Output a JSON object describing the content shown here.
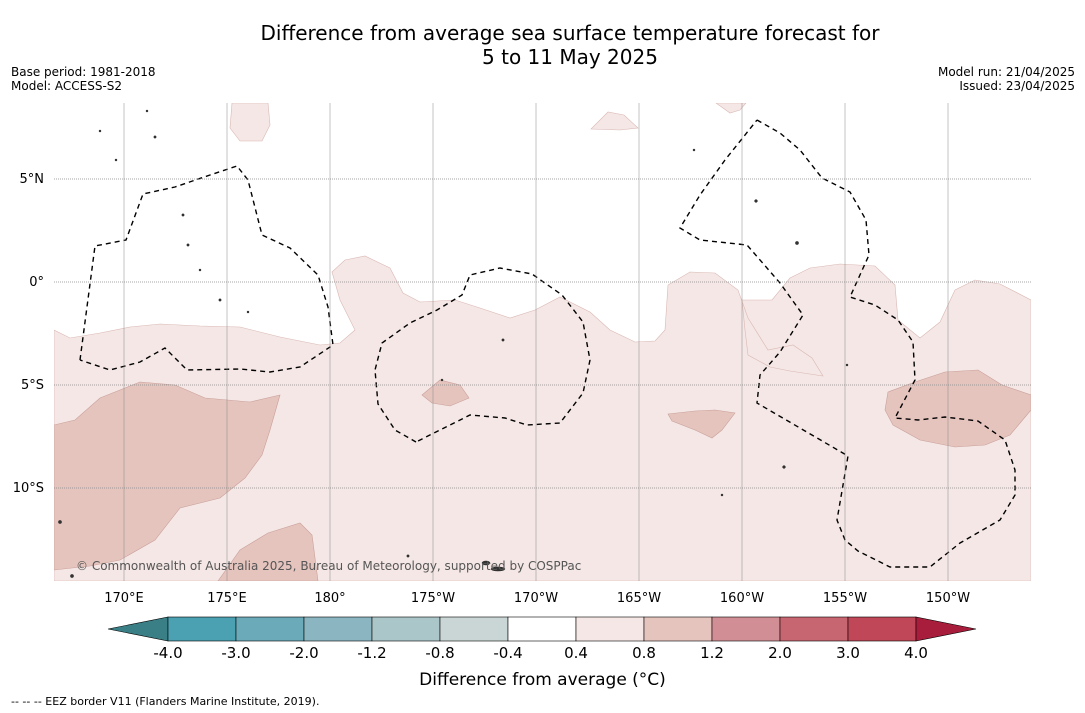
{
  "title_line1": "Difference from average sea surface temperature forecast for",
  "title_line2": "5 to 11 May 2025",
  "meta_left": {
    "base_period": "Base period: 1981-2018",
    "model": "Model: ACCESS-S2"
  },
  "meta_right": {
    "model_run": "Model run: 21/04/2025",
    "issued": "Issued: 23/04/2025"
  },
  "copyright": "© Commonwealth of Australia 2025, Bureau of Meteorology, supported by COSPPac",
  "lat_labels": [
    "5°N",
    "0°",
    "5°S",
    "10°S"
  ],
  "lon_labels": [
    "170°E",
    "175°E",
    "180°",
    "175°W",
    "170°W",
    "165°W",
    "160°W",
    "155°W",
    "150°W"
  ],
  "colorbar": {
    "title": "Difference from average (°C)",
    "tick_labels": [
      "-4.0",
      "-3.0",
      "-2.0",
      "-1.2",
      "-0.8",
      "-0.4",
      "0.4",
      "0.8",
      "1.2",
      "2.0",
      "3.0",
      "4.0"
    ],
    "colors": [
      "#3a7f86",
      "#4ba1b2",
      "#6aaab9",
      "#8bb6c1",
      "#abc6c9",
      "#cad6d6",
      "#ffffff",
      "#f4e7e5",
      "#e6c4be",
      "#d28e95",
      "#c76670",
      "#bf4757",
      "#a71d3b"
    ]
  },
  "footnote": "--  --  -- EEZ border V11 (Flanders Marine Institute, 2019)."
}
